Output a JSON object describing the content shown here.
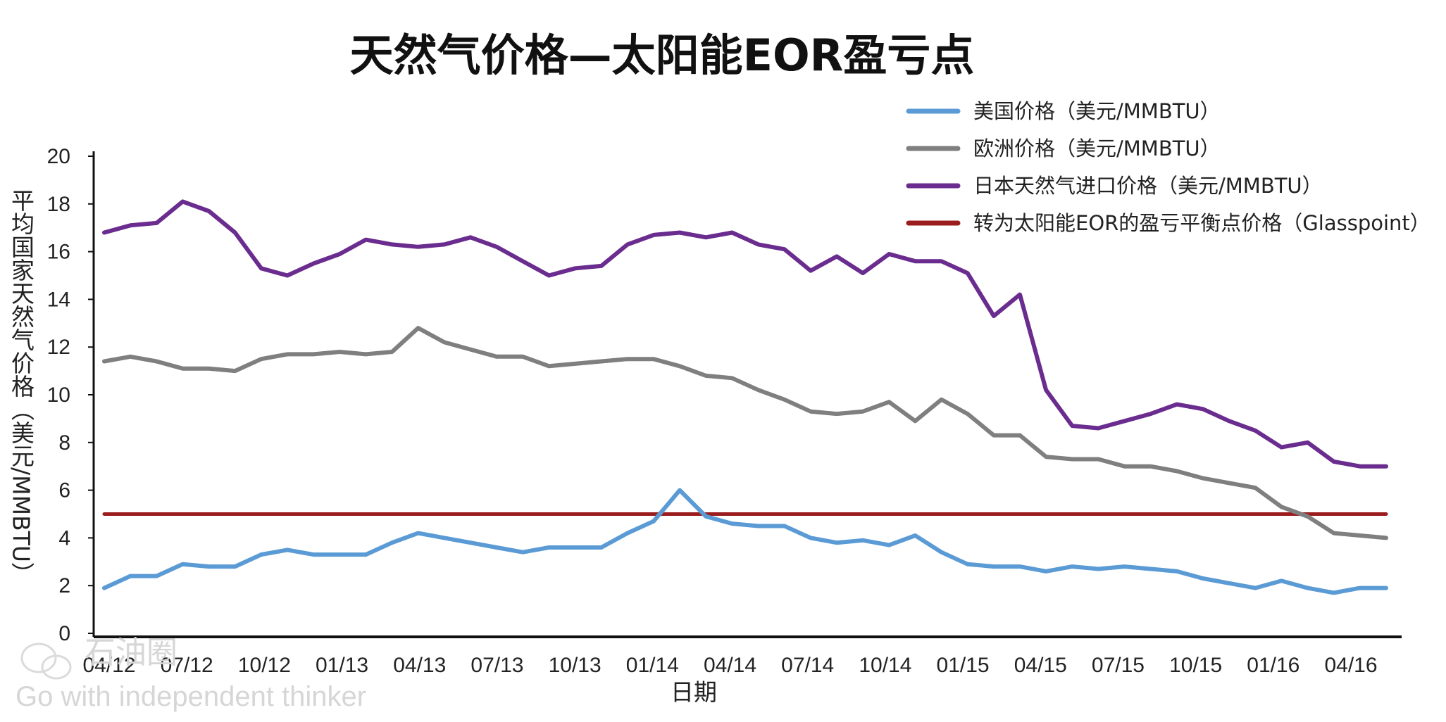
{
  "chart_data": {
    "type": "line",
    "title": "天然气价格—太阳能EOR盈亏点",
    "xlabel": "日期",
    "ylabel": "平均国家天然气价格（美元/MMBTU）",
    "ylim": [
      0,
      20
    ],
    "yticks": [
      0,
      2,
      4,
      6,
      8,
      10,
      12,
      14,
      16,
      18,
      20
    ],
    "x_tick_labels": [
      "04/12",
      "07/12",
      "10/12",
      "01/13",
      "04/13",
      "07/13",
      "10/13",
      "01/14",
      "04/14",
      "07/14",
      "10/14",
      "01/15",
      "04/15",
      "07/15",
      "10/15",
      "01/16",
      "04/16"
    ],
    "legend_position": "top-right",
    "grid": false,
    "series": [
      {
        "name": "美国价格（美元/MMBTU）",
        "color": "#5b9bd5",
        "values": [
          1.9,
          2.4,
          2.4,
          2.9,
          2.8,
          2.8,
          3.3,
          3.5,
          3.3,
          3.3,
          3.3,
          3.8,
          4.2,
          4.0,
          3.8,
          3.6,
          3.4,
          3.6,
          3.6,
          3.6,
          4.2,
          4.7,
          6.0,
          4.9,
          4.6,
          4.5,
          4.5,
          4.0,
          3.8,
          3.9,
          3.7,
          4.1,
          3.4,
          2.9,
          2.8,
          2.8,
          2.6,
          2.8,
          2.7,
          2.8,
          2.7,
          2.6,
          2.3,
          2.1,
          1.9,
          2.2,
          1.9,
          1.7,
          1.9,
          1.9
        ]
      },
      {
        "name": "欧洲价格（美元/MMBTU）",
        "color": "#7f7f7f",
        "values": [
          11.4,
          11.6,
          11.4,
          11.1,
          11.1,
          11.0,
          11.5,
          11.7,
          11.7,
          11.8,
          11.7,
          11.8,
          12.8,
          12.2,
          11.9,
          11.6,
          11.6,
          11.2,
          11.3,
          11.4,
          11.5,
          11.5,
          11.2,
          10.8,
          10.7,
          10.2,
          9.8,
          9.3,
          9.2,
          9.3,
          9.7,
          8.9,
          9.8,
          9.2,
          8.3,
          8.3,
          7.4,
          7.3,
          7.3,
          7.0,
          7.0,
          6.8,
          6.5,
          6.3,
          6.1,
          5.3,
          4.9,
          4.2,
          4.1,
          4.0
        ]
      },
      {
        "name": "日本天然气进口价格（美元/MMBTU）",
        "color": "#6a2c8e",
        "values": [
          16.8,
          17.1,
          17.2,
          18.1,
          17.7,
          16.8,
          15.3,
          15.0,
          15.5,
          15.9,
          16.5,
          16.3,
          16.2,
          16.3,
          16.6,
          16.2,
          15.6,
          15.0,
          15.3,
          15.4,
          16.3,
          16.7,
          16.8,
          16.6,
          16.8,
          16.3,
          16.1,
          15.2,
          15.8,
          15.1,
          15.9,
          15.6,
          15.6,
          15.1,
          13.3,
          14.2,
          10.2,
          8.7,
          8.6,
          8.9,
          9.2,
          9.6,
          9.4,
          8.9,
          8.5,
          7.8,
          8.0,
          7.2,
          7.0,
          7.0
        ]
      },
      {
        "name": "转为太阳能EOR的盈亏平衡点价格（Glasspoint）",
        "color": "#9b1c1c",
        "values": [
          5.0,
          5.0
        ]
      }
    ]
  },
  "watermark": {
    "brand": "石油圈",
    "slogan": "Go with independent thinker"
  }
}
